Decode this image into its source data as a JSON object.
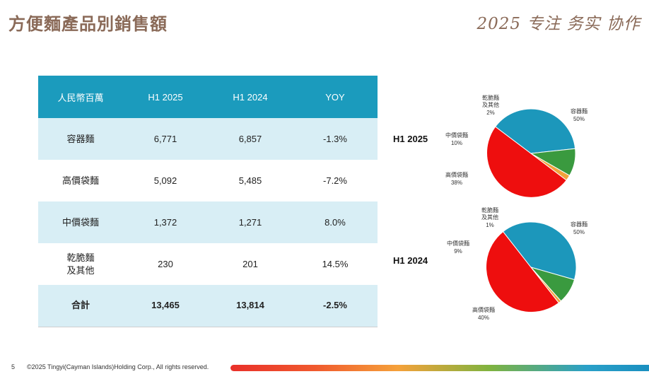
{
  "header": {
    "title": "方便麵產品別銷售額",
    "slogan": "2025 专注 务实 协作"
  },
  "table": {
    "columns": [
      "人民幣百萬",
      "H1 2025",
      "H1 2024",
      "YOY"
    ],
    "rows": [
      {
        "name": "容器麵",
        "h1_2025": "6,771",
        "h1_2024": "6,857",
        "yoy": "-1.3%"
      },
      {
        "name": "高價袋麵",
        "h1_2025": "5,092",
        "h1_2024": "5,485",
        "yoy": "-7.2%"
      },
      {
        "name": "中價袋麵",
        "h1_2025": "1,372",
        "h1_2024": "1,271",
        "yoy": "8.0%"
      },
      {
        "name_line1": "乾脆麵",
        "name_line2": "及其他",
        "h1_2025": "230",
        "h1_2024": "201",
        "yoy": "14.5%"
      },
      {
        "name": "合計",
        "h1_2025": "13,465",
        "h1_2024": "13,814",
        "yoy": "-2.5%"
      }
    ]
  },
  "chart_data": [
    {
      "type": "pie",
      "title": "H1 2025",
      "slices": [
        {
          "label": "容器麵",
          "value": 50,
          "pct_label": "50%",
          "color": "#ee0e0e"
        },
        {
          "label": "高價袋麵",
          "value": 38,
          "pct_label": "38%",
          "color": "#1c97bb"
        },
        {
          "label": "中價袋麵",
          "value": 10,
          "pct_label": "10%",
          "color": "#3a9a3f"
        },
        {
          "label_line1": "乾脆麵",
          "label_line2": "及其他",
          "value": 2,
          "pct_label": "2%",
          "color": "#f1a33c"
        }
      ]
    },
    {
      "type": "pie",
      "title": "H1 2024",
      "slices": [
        {
          "label": "容器麵",
          "value": 50,
          "pct_label": "50%",
          "color": "#ee0e0e"
        },
        {
          "label": "高價袋麵",
          "value": 40,
          "pct_label": "40%",
          "color": "#1c97bb"
        },
        {
          "label": "中價袋麵",
          "value": 9,
          "pct_label": "9%",
          "color": "#3a9a3f"
        },
        {
          "label_line1": "乾脆麵",
          "label_line2": "及其他",
          "value": 1,
          "pct_label": "1%",
          "color": "#f1a33c"
        }
      ]
    }
  ],
  "footer": {
    "page_number": "5",
    "copyright": "©2025 Tingyi(Cayman Islands)Holding Corp., All rights reserved."
  }
}
